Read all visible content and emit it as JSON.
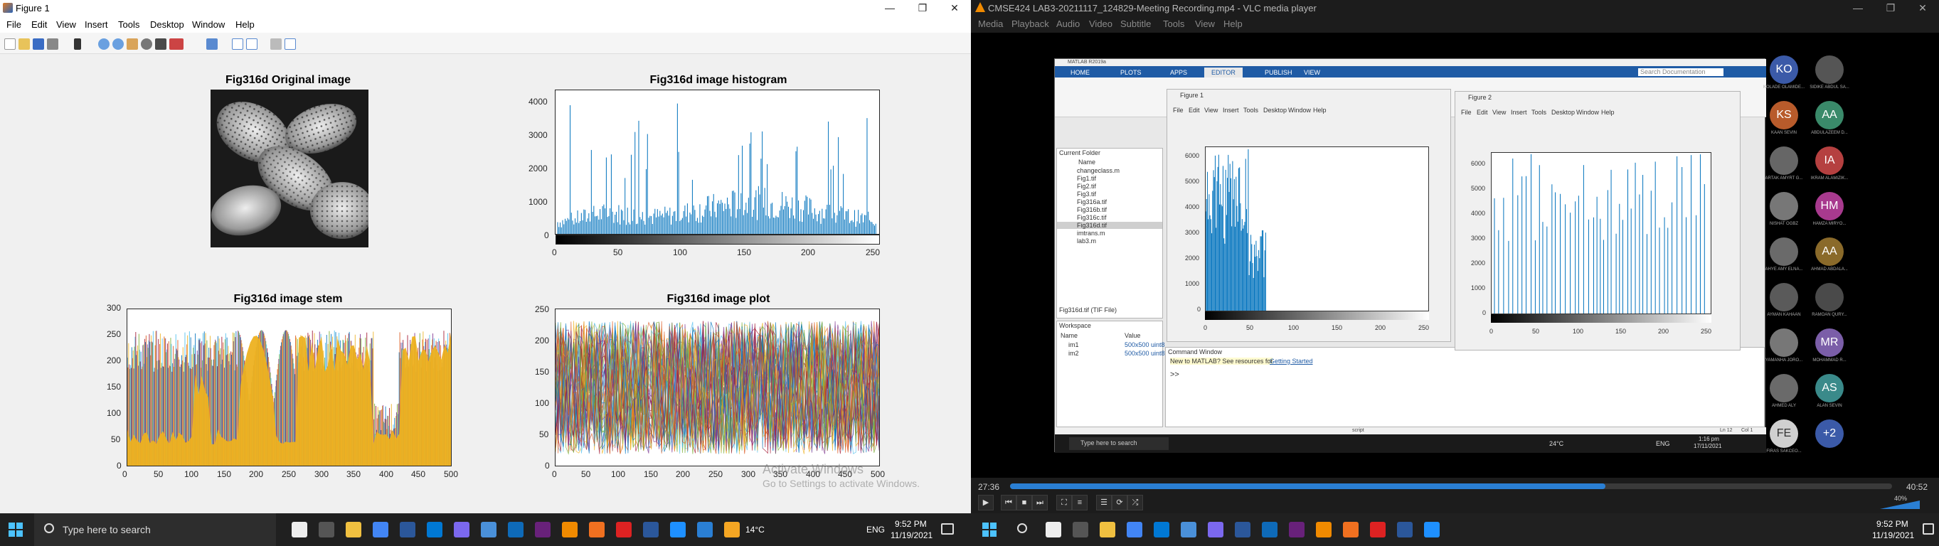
{
  "matlab": {
    "title": "Figure 1",
    "menu": [
      "File",
      "Edit",
      "View",
      "Insert",
      "Tools",
      "Desktop",
      "Window",
      "Help"
    ],
    "window_buttons": [
      "—",
      "❐",
      "✕"
    ],
    "axes": {
      "original": {
        "title": "Fig316d Original image"
      },
      "histogram": {
        "title": "Fig316d image histogram",
        "xticks": [
          "0",
          "50",
          "100",
          "150",
          "200",
          "250"
        ],
        "yticks": [
          "0",
          "1000",
          "2000",
          "3000",
          "4000"
        ]
      },
      "stem": {
        "title": "Fig316d image stem",
        "xticks": [
          "0",
          "50",
          "100",
          "150",
          "200",
          "250",
          "300",
          "350",
          "400",
          "450",
          "500"
        ],
        "yticks": [
          "0",
          "50",
          "100",
          "150",
          "200",
          "250",
          "300"
        ]
      },
      "plot": {
        "title": "Fig316d image plot",
        "xticks": [
          "0",
          "50",
          "100",
          "150",
          "200",
          "250",
          "300",
          "350",
          "400",
          "450",
          "500"
        ],
        "yticks": [
          "0",
          "50",
          "100",
          "150",
          "200",
          "250"
        ]
      }
    },
    "watermark": {
      "line1": "Activate Windows",
      "line2": "Go to Settings to activate Windows."
    }
  },
  "vlc": {
    "title": "CMSE424 LAB3-20211117_124829-Meeting Recording.mp4 - VLC media player",
    "menu": [
      "Media",
      "Playback",
      "Audio",
      "Video",
      "Subtitle",
      "Tools",
      "View",
      "Help"
    ],
    "window_buttons": [
      "—",
      "❐",
      "✕"
    ],
    "time_elapsed": "27:36",
    "time_total": "40:52",
    "progress": 0.675,
    "volume": "40%",
    "inner": {
      "tabs": [
        "HOME",
        "PLOTS",
        "APPS",
        "EDITOR",
        "PUBLISH",
        "VIEW"
      ],
      "matlab_title": "MATLAB R2019a",
      "search_placeholder": "Search Documentation",
      "current_folder": "Current Folder",
      "files": [
        "changeclass.m",
        "Fig1.tif",
        "Fig2.tif",
        "Fig3.tif",
        "Fig316a.tif",
        "Fig316b.tif",
        "Fig316c.tif",
        "Fig316d.tif",
        "imtrans.m",
        "lab3.m"
      ],
      "file_col": "Name",
      "file_info": "Fig316d.tif (TIF File)",
      "workspace": "Workspace",
      "ws_cols": [
        "Name",
        "Value"
      ],
      "ws_vars": [
        {
          "name": "im1",
          "value": "500x500 uint8"
        },
        {
          "name": "im2",
          "value": "500x500 uint8"
        }
      ],
      "command_window": "Command Window",
      "cmd_hint": "New to MATLAB? See resources for",
      "cmd_link": "Getting Started",
      "prompt": ">>",
      "fig1_title": "Figure 1",
      "fig2_title": "Figure 2",
      "fig_menu": [
        "File",
        "Edit",
        "View",
        "Insert",
        "Tools",
        "Desktop",
        "Window",
        "Help"
      ],
      "f1_yticks": [
        "6000",
        "5000",
        "4000",
        "3000",
        "2000",
        "1000",
        "0"
      ],
      "f1_xticks": [
        "0",
        "50",
        "100",
        "150",
        "200",
        "250"
      ],
      "f2_yticks": [
        "6000",
        "5000",
        "4000",
        "3000",
        "2000",
        "1000",
        "0"
      ],
      "f2_xticks": [
        "0",
        "50",
        "100",
        "150",
        "200",
        "250"
      ],
      "status_script": "script",
      "status_ln": "Ln 12",
      "status_col": "Col 1",
      "taskbar_search": "Type here to search",
      "temp": "24°C",
      "lang": "ENG",
      "time": "1:16 pm",
      "date": "17/11/2021"
    },
    "participants": [
      {
        "initials": "KO",
        "name": "KOLADE OLAMIDE...",
        "color": "#3b5aa8"
      },
      {
        "initials": "",
        "name": "SIDIKE ABDUL SA...",
        "color": "#555"
      },
      {
        "initials": "KS",
        "name": "KAAN SEVIN",
        "color": "#b85b2b"
      },
      {
        "initials": "AA",
        "name": "ABDULAZEEM D...",
        "color": "#3a8a6a"
      },
      {
        "initials": "",
        "name": "ARTAK AMYRT G...",
        "color": "#666"
      },
      {
        "initials": "IA",
        "name": "IKRAM ALAMIZIK...",
        "color": "#b54040"
      },
      {
        "initials": "",
        "name": "NISHAT OGBZ",
        "color": "#777"
      },
      {
        "initials": "HM",
        "name": "HAMZA MIRYO...",
        "color": "#a83a8e"
      },
      {
        "initials": "",
        "name": "AHYE AMY ELNA...",
        "color": "#6a6a6a"
      },
      {
        "initials": "AA",
        "name": "AHMAD ABDALA...",
        "color": "#8a6a2a"
      },
      {
        "initials": "",
        "name": "AYMAN KAHAAN",
        "color": "#5a5a5a"
      },
      {
        "initials": "",
        "name": "RAMOAN QURY...",
        "color": "#4a4a4a"
      },
      {
        "initials": "",
        "name": "YAMANHA JORO...",
        "color": "#777"
      },
      {
        "initials": "MR",
        "name": "MOHAMMAD R...",
        "color": "#7b5ea8"
      },
      {
        "initials": "",
        "name": "AHMED ALY",
        "color": "#6a6a6a"
      },
      {
        "initials": "AS",
        "name": "ALAN SEVIN",
        "color": "#3a8a8a"
      },
      {
        "initials": "FE",
        "name": "FIRAS SAKCEO...",
        "color": "#d0d0d0"
      },
      {
        "initials": "+2",
        "name": "",
        "color": "#3b5aa8"
      }
    ]
  },
  "taskbar": {
    "search_placeholder": "Type here to search",
    "left": {
      "temp": "14°C",
      "lang": "ENG",
      "time": "9:52 PM",
      "date": "11/19/2021"
    },
    "right": {
      "time": "9:52 PM",
      "date": "11/19/2021"
    }
  },
  "colors": {
    "matlab_blue": "#0072bd",
    "stem_orange": "#edb120",
    "vlc_progress": "#2a7fd4",
    "taskbar": "#202020"
  }
}
